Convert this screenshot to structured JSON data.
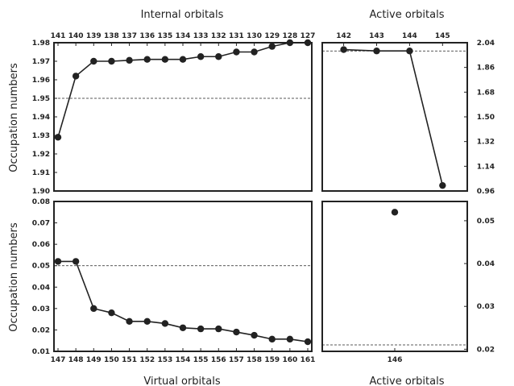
{
  "chart_data": [
    {
      "type": "line",
      "title": "Internal orbitals",
      "ylabel": "Occupation numbers",
      "x": [
        141,
        140,
        139,
        138,
        137,
        136,
        135,
        134,
        133,
        132,
        131,
        130,
        129,
        128,
        127
      ],
      "series": [
        {
          "values": [
            1.929,
            1.962,
            1.97,
            1.97,
            1.9705,
            1.971,
            1.971,
            1.971,
            1.9725,
            1.9725,
            1.975,
            1.975,
            1.978,
            1.98,
            1.98
          ]
        }
      ],
      "ylim": [
        1.9,
        1.98
      ],
      "yticks": [
        "1.90",
        "1.91",
        "1.92",
        "1.93",
        "1.94",
        "1.95",
        "1.96",
        "1.97",
        "1.98"
      ],
      "reference_line": 1.95,
      "xaxis_position": "top"
    },
    {
      "type": "line",
      "title": "Active orbitals",
      "x": [
        142,
        143,
        144,
        145
      ],
      "series": [
        {
          "values": [
            1.99,
            1.98,
            1.98,
            1.0
          ]
        }
      ],
      "ylim": [
        0.96,
        2.04
      ],
      "yticks": [
        "0.96",
        "1.14",
        "1.32",
        "1.50",
        "1.68",
        "1.86",
        "2.04"
      ],
      "reference_line": 1.98,
      "xaxis_position": "top",
      "yaxis_position": "right"
    },
    {
      "type": "line",
      "title": "Virtual orbitals",
      "ylabel": "Occupation numbers",
      "x": [
        147,
        148,
        149,
        150,
        151,
        152,
        153,
        154,
        155,
        156,
        157,
        158,
        159,
        160,
        161
      ],
      "series": [
        {
          "values": [
            0.052,
            0.052,
            0.03,
            0.028,
            0.024,
            0.024,
            0.023,
            0.021,
            0.0205,
            0.0205,
            0.019,
            0.0175,
            0.0157,
            0.0157,
            0.0145
          ]
        }
      ],
      "ylim": [
        0.01,
        0.08
      ],
      "yticks": [
        "0.01",
        "0.02",
        "0.03",
        "0.04",
        "0.05",
        "0.06",
        "0.07",
        "0.08"
      ],
      "reference_line": 0.05,
      "xaxis_position": "bottom"
    },
    {
      "type": "scatter",
      "title": "Active orbitals",
      "x": [
        146
      ],
      "series": [
        {
          "values": [
            0.052
          ]
        }
      ],
      "ylim": [
        0.0195,
        0.0545
      ],
      "yticks": [
        "0.02",
        "0.03",
        "0.04",
        "0.05"
      ],
      "reference_line": 0.021,
      "xaxis_position": "bottom",
      "yaxis_position": "right"
    }
  ],
  "style": {
    "line_color": "#222222",
    "marker_color": "#222222",
    "frame_color": "#222222"
  }
}
